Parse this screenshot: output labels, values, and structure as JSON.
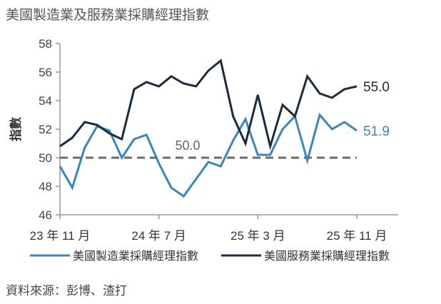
{
  "chart_data": {
    "type": "line",
    "title": "美國製造業及服務業採購經理指數",
    "ylabel": "指數",
    "xlabel": "",
    "ylim": [
      46,
      58
    ],
    "yticks": [
      46,
      48,
      50,
      52,
      54,
      56,
      58
    ],
    "x": [
      "23-11",
      "23-12",
      "24-01",
      "24-02",
      "24-03",
      "24-04",
      "24-05",
      "24-06",
      "24-07",
      "24-08",
      "24-09",
      "24-10",
      "24-11",
      "24-12",
      "25-01",
      "25-02",
      "25-03",
      "25-04",
      "25-05",
      "25-06",
      "25-07",
      "25-08",
      "25-09",
      "25-10",
      "25-11"
    ],
    "xtick_labels": [
      {
        "x": "23-11",
        "label": "23 年 11 月"
      },
      {
        "x": "24-07",
        "label": "24 年 7 月"
      },
      {
        "x": "25-03",
        "label": "25 年 3 月"
      },
      {
        "x": "25-11",
        "label": "25 年 11 月"
      }
    ],
    "grid": false,
    "legend_position": "bottom",
    "series": [
      {
        "name": "美國製造業採購經理指數",
        "color": "#3a87b5",
        "end_label": "51.9",
        "values": [
          49.4,
          47.9,
          50.7,
          52.2,
          51.9,
          50.0,
          51.3,
          51.6,
          49.6,
          47.9,
          47.3,
          48.5,
          49.7,
          49.4,
          51.2,
          52.7,
          50.2,
          50.2,
          52.0,
          52.9,
          49.8,
          53.0,
          52.0,
          52.5,
          51.9
        ]
      },
      {
        "name": "美國服務業採購經理指數",
        "color": "#1b2a3c",
        "end_label": "55.0",
        "values": [
          50.8,
          51.4,
          52.5,
          52.3,
          51.7,
          51.3,
          54.8,
          55.3,
          55.0,
          55.7,
          55.2,
          55.0,
          56.1,
          56.8,
          52.9,
          51.0,
          54.4,
          50.8,
          53.7,
          52.9,
          55.7,
          54.5,
          54.2,
          54.8,
          55.0
        ]
      }
    ],
    "reference_line": {
      "y": 50,
      "label": "50.0",
      "style": "dashed",
      "color": "#6b6b6b"
    }
  },
  "source": "資料來源：彭博、渣打"
}
